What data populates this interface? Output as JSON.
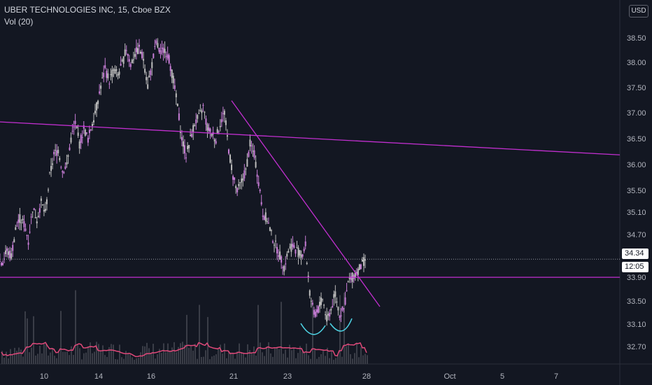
{
  "header": {
    "title": "UBER TECHNOLOGIES INC, 15, Cboe BZX",
    "indicator": "Vol (20)"
  },
  "currency_button": "USD",
  "price_badge": "34.34",
  "time_badge": "12:05",
  "colors": {
    "background": "#131722",
    "candle": "#bdbdbd",
    "candle_highlight": "#c77dd6",
    "trendline": "#c22fd0",
    "volume_ma": "#e0497a",
    "volume_bar": "#3a3d47",
    "arc": "#4dd0e1"
  },
  "chart_data": {
    "type": "line",
    "title": "UBER TECHNOLOGIES INC, 15, Cboe BZX",
    "y_ticks": [
      "38.50",
      "38.00",
      "37.50",
      "37.00",
      "36.50",
      "36.00",
      "35.50",
      "35.10",
      "34.70",
      "33.90",
      "33.50",
      "33.10",
      "32.70"
    ],
    "x_ticks": [
      "10",
      "14",
      "16",
      "21",
      "23",
      "28",
      "Oct",
      "5",
      "7"
    ],
    "ylim": [
      32.5,
      38.9
    ],
    "last_price": 34.34,
    "horizontal_level": 34.0,
    "series": [
      {
        "values": [
          34.3,
          34.5,
          34.4,
          34.9,
          35.1,
          35.0,
          34.7,
          35.3,
          35.1,
          35.4,
          35.2,
          35.9,
          36.3,
          36.4,
          36.0,
          36.1,
          36.6,
          36.9,
          36.5,
          36.8,
          36.6,
          36.9,
          37.2,
          37.6,
          37.9,
          37.7,
          37.9,
          37.8,
          38.0,
          38.3,
          38.0,
          38.2,
          38.3,
          38.1,
          37.6,
          38.0,
          38.4,
          38.2,
          38.3,
          38.1,
          37.7,
          37.2,
          36.6,
          36.3,
          36.6,
          36.9,
          37.0,
          37.2,
          36.8,
          36.7,
          36.6,
          36.9,
          37.1,
          36.4,
          35.9,
          35.6,
          35.8,
          36.0,
          36.5,
          36.3,
          35.8,
          35.2,
          35.1,
          34.8,
          34.6,
          34.4,
          34.2,
          34.5,
          34.6,
          34.5,
          34.4,
          34.6,
          33.7,
          33.3,
          33.4,
          33.6,
          33.2,
          33.4,
          33.7,
          33.3,
          33.4,
          33.9,
          34.0,
          34.1,
          34.2,
          34.34
        ]
      }
    ],
    "trendlines": [
      {
        "from": 36.92,
        "to": 36.3
      },
      {
        "from": 37.32,
        "to": 33.45
      }
    ]
  }
}
